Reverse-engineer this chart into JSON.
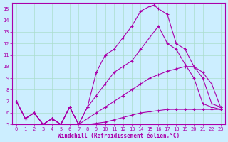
{
  "xlabel": "Windchill (Refroidissement éolien,°C)",
  "bg_color": "#cceeff",
  "grid_color": "#aaddcc",
  "line_color": "#aa00aa",
  "xlim": [
    -0.5,
    23.5
  ],
  "ylim": [
    5,
    15.5
  ],
  "xticks": [
    0,
    1,
    2,
    3,
    4,
    5,
    6,
    7,
    8,
    9,
    10,
    11,
    12,
    13,
    14,
    15,
    16,
    17,
    18,
    19,
    20,
    21,
    22,
    23
  ],
  "yticks": [
    5,
    6,
    7,
    8,
    9,
    10,
    11,
    12,
    13,
    14,
    15
  ],
  "curve1_x": [
    0,
    1,
    2,
    3,
    4,
    5,
    6,
    7,
    8,
    9,
    10,
    11,
    12,
    13,
    14,
    15,
    16,
    17,
    18,
    19,
    20,
    21,
    22,
    23
  ],
  "curve1_y": [
    7.0,
    5.5,
    6.0,
    5.0,
    5.5,
    5.0,
    6.5,
    5.0,
    5.0,
    5.1,
    5.2,
    5.4,
    5.6,
    5.8,
    6.0,
    6.1,
    6.2,
    6.3,
    6.3,
    6.3,
    6.3,
    6.3,
    6.3,
    6.3
  ],
  "curve2_x": [
    0,
    1,
    2,
    3,
    4,
    5,
    6,
    7,
    8,
    9,
    10,
    11,
    12,
    13,
    14,
    15,
    16,
    17,
    18,
    19,
    20,
    21,
    22,
    23
  ],
  "curve2_y": [
    7.0,
    5.5,
    6.0,
    5.0,
    5.5,
    5.0,
    6.5,
    5.0,
    5.5,
    6.0,
    6.5,
    7.0,
    7.5,
    8.0,
    8.5,
    9.0,
    9.3,
    9.6,
    9.8,
    10.0,
    10.0,
    9.5,
    8.5,
    6.5
  ],
  "curve3_x": [
    0,
    1,
    2,
    3,
    4,
    5,
    6,
    7,
    8,
    9,
    10,
    11,
    12,
    13,
    14,
    15,
    16,
    17,
    18,
    19,
    20,
    21,
    22,
    23
  ],
  "curve3_y": [
    7.0,
    5.5,
    6.0,
    5.0,
    5.5,
    5.0,
    6.5,
    5.0,
    6.5,
    7.5,
    8.5,
    9.5,
    10.0,
    10.5,
    11.5,
    12.5,
    13.5,
    12.0,
    11.5,
    10.2,
    9.0,
    6.8,
    6.5,
    6.3
  ],
  "curve4_x": [
    0,
    1,
    2,
    3,
    4,
    5,
    6,
    7,
    8,
    9,
    10,
    11,
    12,
    13,
    14,
    15,
    15.5,
    16,
    17,
    18,
    19,
    20,
    21,
    22,
    23
  ],
  "curve4_y": [
    7.0,
    5.5,
    6.0,
    5.0,
    5.5,
    5.0,
    6.5,
    5.0,
    6.5,
    9.5,
    11.0,
    11.5,
    12.5,
    13.5,
    14.8,
    15.2,
    15.3,
    15.0,
    14.5,
    12.0,
    11.5,
    10.0,
    9.0,
    6.8,
    6.5
  ]
}
